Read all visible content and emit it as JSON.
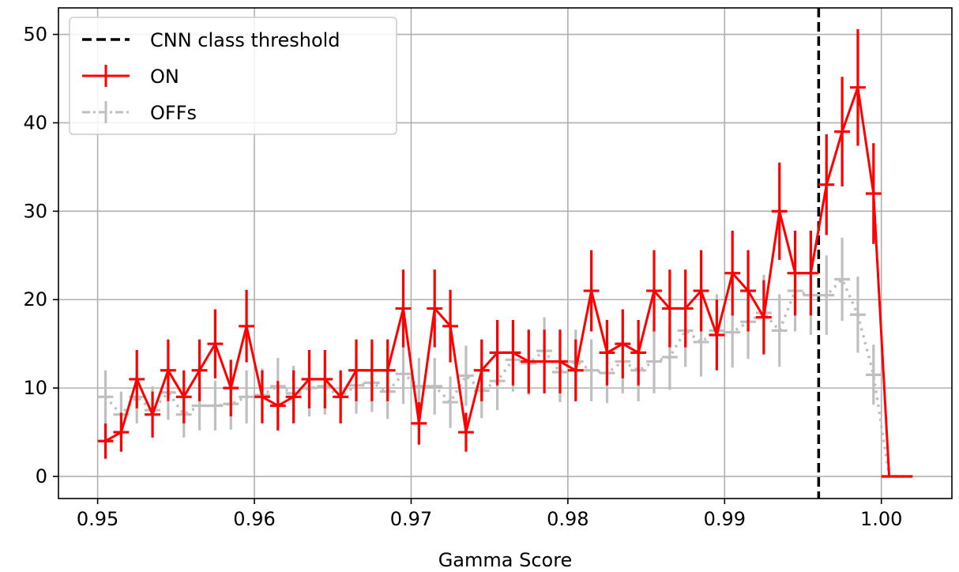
{
  "chart_data": {
    "type": "line",
    "title": "",
    "xlabel": "Gamma Score",
    "ylabel": "",
    "xlim": [
      0.9475,
      1.0045
    ],
    "ylim": [
      -2.5,
      53
    ],
    "xticks": [
      0.95,
      0.96,
      0.97,
      0.98,
      0.99,
      1.0
    ],
    "xtick_labels": [
      "0.95",
      "0.96",
      "0.97",
      "0.98",
      "0.99",
      "1.00"
    ],
    "yticks": [
      0,
      10,
      20,
      30,
      40,
      50
    ],
    "ytick_labels": [
      "0",
      "10",
      "20",
      "30",
      "40",
      "50"
    ],
    "grid": true,
    "legend_position": "top-left",
    "threshold": {
      "name": "CNN class threshold",
      "x": 0.996,
      "color": "#000000",
      "style": "dashed"
    },
    "bin_width": 0.001,
    "series": [
      {
        "name": "ON",
        "color": "#ff0000",
        "style": "solid",
        "x": [
          0.9505,
          0.9515,
          0.9525,
          0.9535,
          0.9545,
          0.9555,
          0.9565,
          0.9575,
          0.9585,
          0.9595,
          0.9605,
          0.9615,
          0.9625,
          0.9635,
          0.9645,
          0.9655,
          0.9665,
          0.9675,
          0.9685,
          0.9695,
          0.9705,
          0.9715,
          0.9725,
          0.9735,
          0.9745,
          0.9755,
          0.9765,
          0.9775,
          0.9785,
          0.9795,
          0.9805,
          0.9815,
          0.9825,
          0.9835,
          0.9845,
          0.9855,
          0.9865,
          0.9875,
          0.9885,
          0.9895,
          0.9905,
          0.9915,
          0.9925,
          0.9935,
          0.9945,
          0.9955,
          0.9965,
          0.9975,
          0.9985,
          0.9995,
          1.0005,
          1.0015
        ],
        "y": [
          4,
          5,
          11,
          7,
          12,
          9,
          12,
          15,
          10,
          17,
          9,
          8,
          9,
          11,
          11,
          9,
          12,
          12,
          12,
          19,
          6,
          19,
          17,
          5,
          12,
          14,
          14,
          13,
          13,
          13,
          12,
          21,
          14,
          15,
          14,
          21,
          19,
          19,
          21,
          16,
          23,
          21,
          18,
          30,
          23,
          23,
          33,
          39,
          44,
          32,
          0,
          0
        ],
        "yerr": [
          2,
          2.2,
          3.3,
          2.6,
          3.5,
          3,
          3.5,
          3.9,
          3.2,
          4.1,
          3,
          2.8,
          3,
          3.3,
          3.3,
          3,
          3.5,
          3.5,
          3.5,
          4.4,
          2.4,
          4.4,
          4.1,
          2.2,
          3.5,
          3.7,
          3.7,
          3.6,
          3.6,
          3.6,
          3.5,
          4.6,
          3.7,
          3.9,
          3.7,
          4.6,
          4.4,
          4.4,
          4.6,
          4,
          4.8,
          4.6,
          4.2,
          5.5,
          4.8,
          4.8,
          5.7,
          6.2,
          6.6,
          5.7,
          0,
          0
        ]
      },
      {
        "name": "OFFs",
        "color": "#bfbfbf",
        "style": "dotted",
        "x": [
          0.9505,
          0.9515,
          0.9525,
          0.9535,
          0.9545,
          0.9555,
          0.9565,
          0.9575,
          0.9585,
          0.9595,
          0.9605,
          0.9615,
          0.9625,
          0.9635,
          0.9645,
          0.9655,
          0.9665,
          0.9675,
          0.9685,
          0.9695,
          0.9705,
          0.9715,
          0.9725,
          0.9735,
          0.9745,
          0.9755,
          0.9765,
          0.9775,
          0.9785,
          0.9795,
          0.9805,
          0.9815,
          0.9825,
          0.9835,
          0.9845,
          0.9855,
          0.9865,
          0.9875,
          0.9885,
          0.9895,
          0.9905,
          0.9915,
          0.9925,
          0.9935,
          0.9945,
          0.9955,
          0.9965,
          0.9975,
          0.9985,
          0.9995,
          1.0005,
          1.0015
        ],
        "y": [
          9,
          7,
          9,
          7.5,
          9.5,
          7,
          8,
          8,
          8.2,
          9,
          9.2,
          10.2,
          9.4,
          10,
          10.2,
          9,
          10.3,
          10.6,
          9.6,
          11.6,
          10.2,
          10.2,
          8.4,
          11.4,
          9.7,
          10.8,
          13.2,
          12.8,
          14.2,
          11.8,
          13,
          12,
          11.7,
          13,
          12,
          13,
          13.5,
          16.5,
          15.2,
          16.5,
          16.3,
          17.5,
          18.5,
          16.5,
          21,
          20.5,
          20.5,
          22.3,
          18.3,
          11.5,
          0,
          0
        ],
        "yerr": [
          3,
          2.6,
          3,
          2.7,
          3.1,
          2.6,
          2.8,
          2.8,
          2.9,
          3,
          3,
          3.2,
          3.1,
          3.2,
          3.2,
          3,
          3.2,
          3.3,
          3.1,
          3.4,
          3.2,
          3.2,
          2.9,
          3.4,
          3.1,
          3.3,
          3.6,
          3.6,
          3.8,
          3.4,
          3.6,
          3.5,
          3.4,
          3.6,
          3.5,
          3.6,
          3.7,
          4.1,
          3.9,
          4.1,
          4,
          4.2,
          4.3,
          4.1,
          4.6,
          4.5,
          4.5,
          4.7,
          4.3,
          3.4,
          0,
          0
        ]
      }
    ]
  }
}
